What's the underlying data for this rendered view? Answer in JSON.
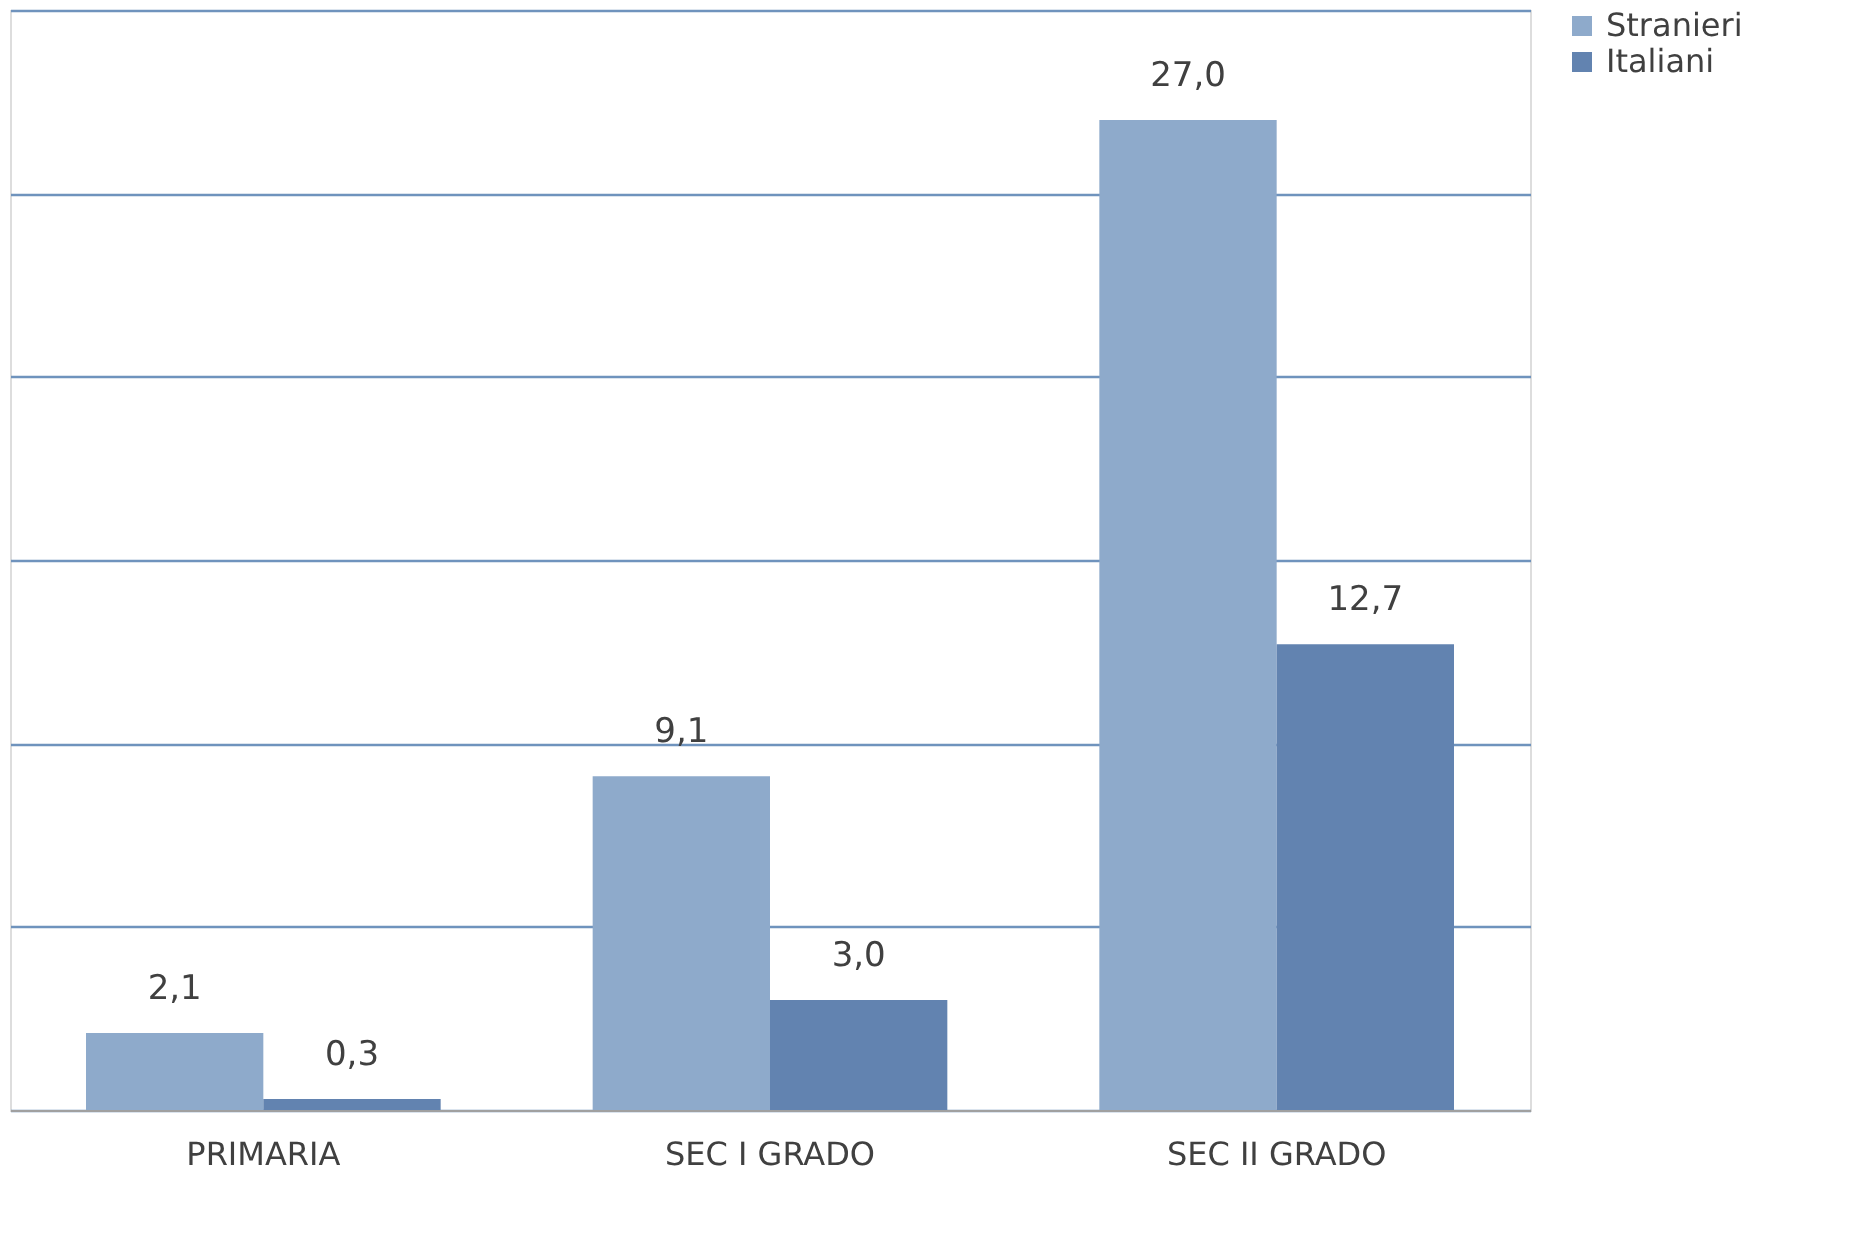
{
  "chart_data": {
    "type": "bar",
    "categories": [
      "PRIMARIA",
      "SEC I GRADO",
      "SEC II GRADO"
    ],
    "series": [
      {
        "name": "Stranieri",
        "color": "#8eaacb",
        "values": [
          2.1,
          9.1,
          27.0
        ],
        "value_labels": [
          "2,1",
          "9,1",
          "27,0"
        ]
      },
      {
        "name": "Italiani",
        "color": "#6283b0",
        "values": [
          0.3,
          3.0,
          12.7
        ],
        "value_labels": [
          "0,3",
          "3,0",
          "12,7"
        ]
      }
    ],
    "ylim": [
      0,
      30
    ],
    "yticks": [
      {
        "value": 0,
        "label": null
      },
      {
        "value": 5,
        "label": null
      },
      {
        "value": 10,
        "label": null
      },
      {
        "value": 15,
        "label": null
      },
      {
        "value": 20,
        "label": null
      },
      {
        "value": 25,
        "label": null
      },
      {
        "value": 30,
        "label": null
      }
    ],
    "tick_labels": "x",
    "grid": "y",
    "legend": "right"
  }
}
